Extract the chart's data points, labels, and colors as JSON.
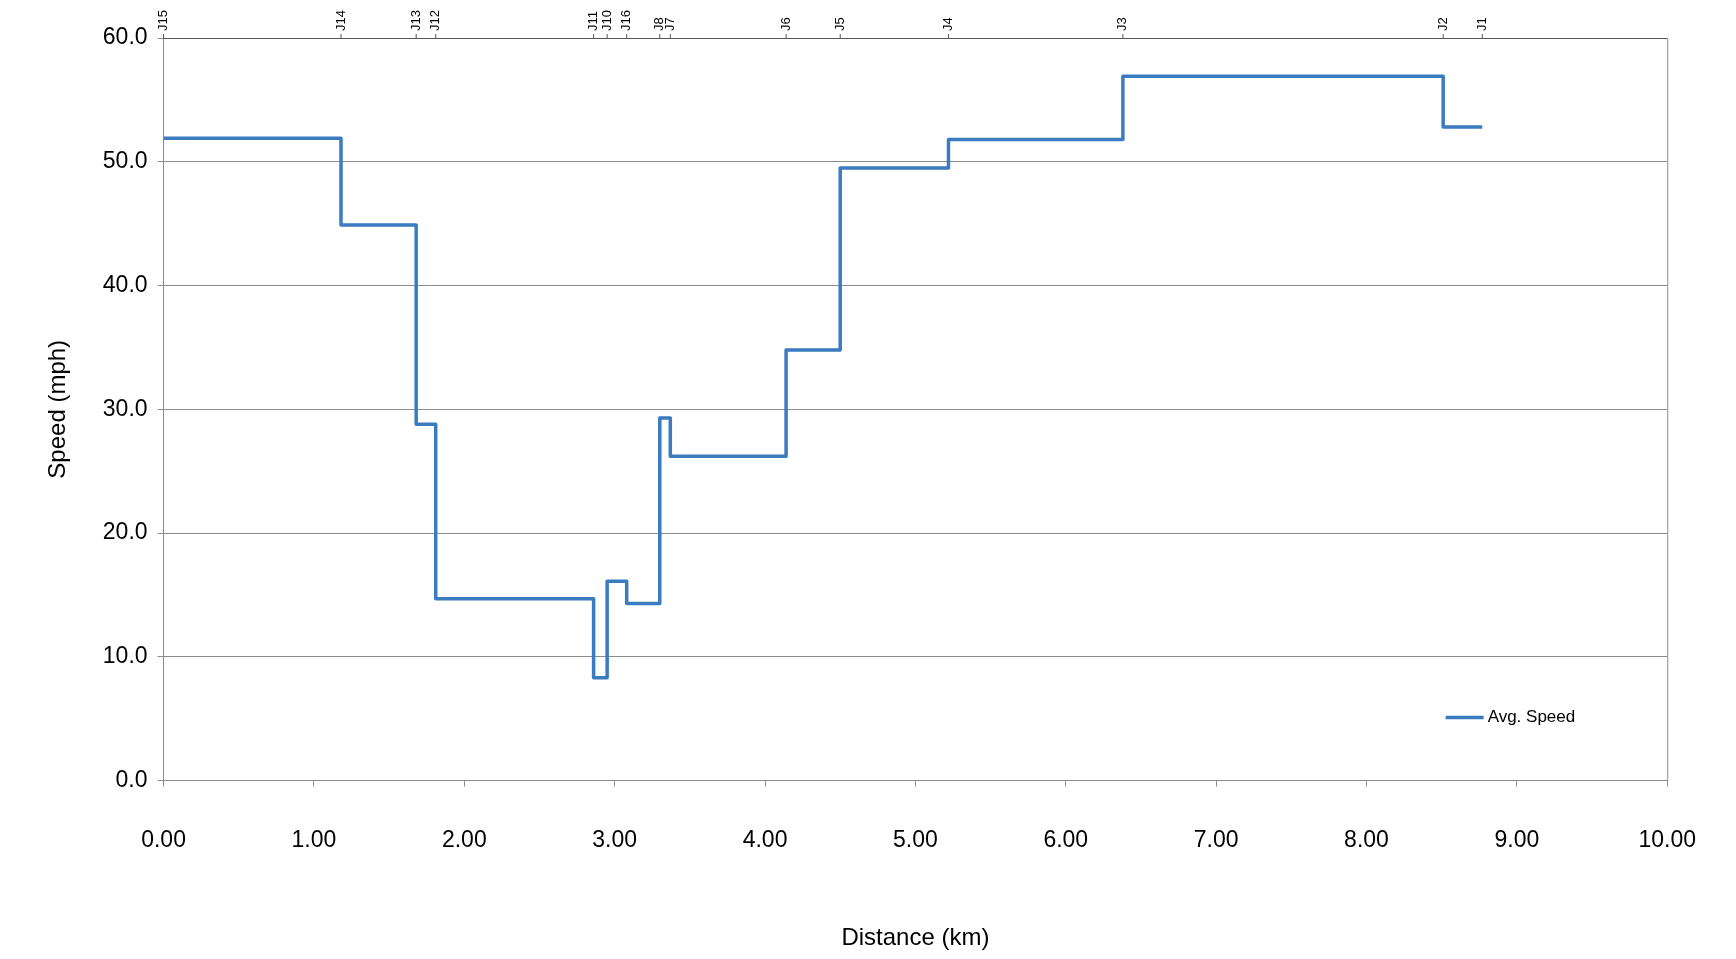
{
  "chart_data": {
    "type": "step",
    "xlabel": "Distance (km)",
    "ylabel": "Speed (mph)",
    "x": [
      0,
      1.18,
      1.68,
      1.81,
      2.86,
      2.95,
      3.08,
      3.3,
      3.37,
      4.14,
      4.5,
      5.22,
      6.38,
      8.51,
      8.77
    ],
    "series": [
      {
        "name": "Avg. Speed",
        "color": "#3b7bbf",
        "values": [
          51.9,
          44.9,
          28.8,
          14.7,
          8.3,
          16.1,
          14.3,
          29.3,
          26.2,
          34.8,
          49.5,
          51.8,
          56.9,
          52.8,
          52.8
        ]
      }
    ],
    "xlim": [
      0,
      10
    ],
    "xticks": [
      {
        "value": 0,
        "label": "0.00"
      },
      {
        "value": 1,
        "label": "1.00"
      },
      {
        "value": 2,
        "label": "2.00"
      },
      {
        "value": 3,
        "label": "3.00"
      },
      {
        "value": 4,
        "label": "4.00"
      },
      {
        "value": 5,
        "label": "5.00"
      },
      {
        "value": 6,
        "label": "6.00"
      },
      {
        "value": 7,
        "label": "7.00"
      },
      {
        "value": 8,
        "label": "8.00"
      },
      {
        "value": 9,
        "label": "9.00"
      },
      {
        "value": 10,
        "label": "10.00"
      }
    ],
    "ylim": [
      0,
      60
    ],
    "yticks": [
      {
        "value": 0,
        "label": "0.0"
      },
      {
        "value": 10,
        "label": "10.0"
      },
      {
        "value": 20,
        "label": "20.0"
      },
      {
        "value": 30,
        "label": "30.0"
      },
      {
        "value": 40,
        "label": "40.0"
      },
      {
        "value": 50,
        "label": "50.0"
      },
      {
        "value": 60,
        "label": "60.0"
      }
    ],
    "ref_lines": [
      {
        "axis": "x",
        "value": 0,
        "label": "J15"
      },
      {
        "axis": "x",
        "value": 1.18,
        "label": "J14"
      },
      {
        "axis": "x",
        "value": 1.68,
        "label": "J13"
      },
      {
        "axis": "x",
        "value": 1.81,
        "label": "J12"
      },
      {
        "axis": "x",
        "value": 2.86,
        "label": "J11"
      },
      {
        "axis": "x",
        "value": 2.95,
        "label": "J10"
      },
      {
        "axis": "x",
        "value": 3.08,
        "label": "J16"
      },
      {
        "axis": "x",
        "value": 3.3,
        "label": "J8"
      },
      {
        "axis": "x",
        "value": 3.37,
        "label": "J7"
      },
      {
        "axis": "x",
        "value": 4.14,
        "label": "J6"
      },
      {
        "axis": "x",
        "value": 4.5,
        "label": "J5"
      },
      {
        "axis": "x",
        "value": 5.22,
        "label": "J4"
      },
      {
        "axis": "x",
        "value": 6.38,
        "label": "J3"
      },
      {
        "axis": "x",
        "value": 8.51,
        "label": "J2"
      },
      {
        "axis": "x",
        "value": 8.77,
        "label": "J1"
      }
    ],
    "grid": "y",
    "legend": "bottom right",
    "marker": "none",
    "line_style": "solid"
  }
}
